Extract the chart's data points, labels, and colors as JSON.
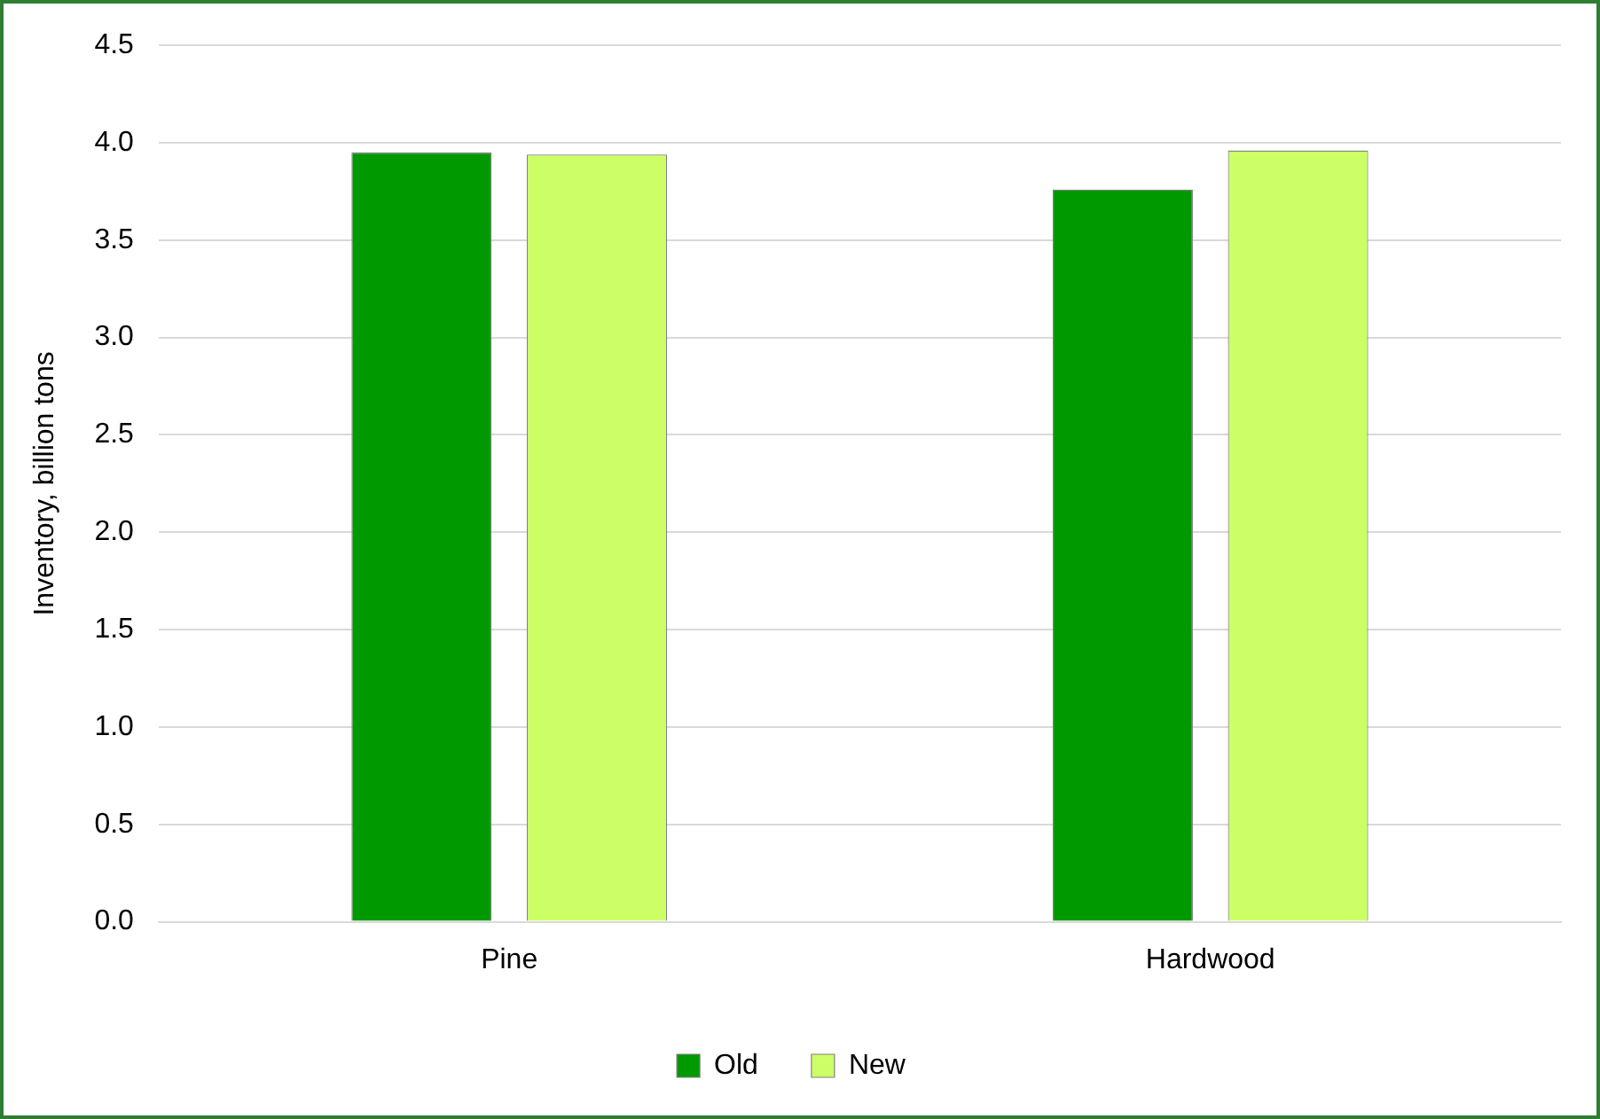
{
  "chart_data": {
    "type": "bar",
    "ylabel": "Inventory, billion tons",
    "categories": [
      "Pine",
      "Hardwood"
    ],
    "series": [
      {
        "name": "Old",
        "color": "#009900",
        "values": [
          3.95,
          3.76
        ]
      },
      {
        "name": "New",
        "color": "#ccff66",
        "values": [
          3.94,
          3.96
        ]
      }
    ],
    "ylim": [
      0,
      4.5
    ],
    "yticks": [
      "0.0",
      0.5,
      "1.0",
      1.5,
      "2.0",
      2.5,
      "3.0",
      3.5,
      "4.0",
      4.5
    ],
    "grid": "y",
    "legend": "bottom"
  }
}
